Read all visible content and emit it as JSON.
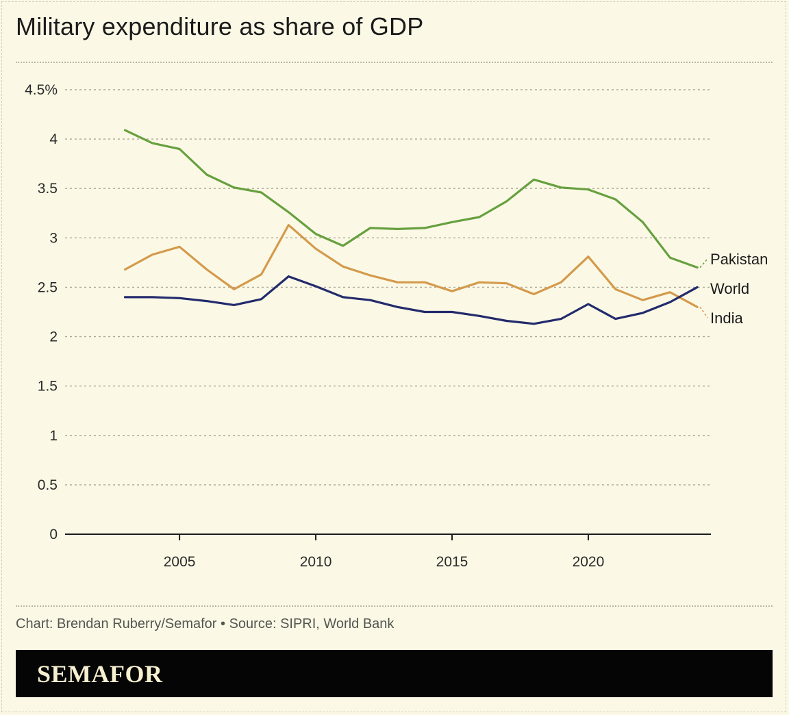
{
  "title": "Military expenditure as share of GDP",
  "credit": "Chart: Brendan Ruberry/Semafor • Source: SIPRI, World Bank",
  "brand": "SEMAFOR",
  "colors": {
    "background": "#fbf9e6",
    "pakistan": "#67a03f",
    "india": "#d49a4c",
    "world": "#232a6c",
    "footer": "#050505",
    "logo": "#f6efd0"
  },
  "chart_data": {
    "type": "line",
    "title": "Military expenditure as share of GDP",
    "xlabel": "",
    "ylabel": "",
    "x": [
      2003,
      2004,
      2005,
      2006,
      2007,
      2008,
      2009,
      2010,
      2011,
      2012,
      2013,
      2014,
      2015,
      2016,
      2017,
      2018,
      2019,
      2020,
      2021,
      2022,
      2023,
      2024
    ],
    "xlim": [
      2000.8,
      2024.5
    ],
    "ylim": [
      0,
      4.5
    ],
    "x_ticks": [
      2005,
      2010,
      2015,
      2020
    ],
    "x_tick_labels": [
      "2005",
      "2010",
      "2015",
      "2020"
    ],
    "y_ticks": [
      0,
      0.5,
      1,
      1.5,
      2,
      2.5,
      3,
      3.5,
      4,
      4.5
    ],
    "y_tick_labels": [
      "0",
      "0.5",
      "1",
      "1.5",
      "2",
      "2.5",
      "3",
      "3.5",
      "4",
      "4.5%"
    ],
    "grid": true,
    "series": [
      {
        "name": "Pakistan",
        "color": "#67a03f",
        "values": [
          4.09,
          3.96,
          3.9,
          3.64,
          3.51,
          3.46,
          3.26,
          3.04,
          2.92,
          3.1,
          3.09,
          3.1,
          3.16,
          3.21,
          3.37,
          3.59,
          3.51,
          3.49,
          3.39,
          3.16,
          2.8,
          2.7
        ]
      },
      {
        "name": "India",
        "color": "#d49a4c",
        "values": [
          2.68,
          2.83,
          2.91,
          2.68,
          2.48,
          2.63,
          3.13,
          2.89,
          2.71,
          2.62,
          2.55,
          2.55,
          2.46,
          2.55,
          2.54,
          2.43,
          2.55,
          2.81,
          2.48,
          2.37,
          2.45,
          2.3
        ]
      },
      {
        "name": "World",
        "color": "#232a6c",
        "values": [
          2.4,
          2.4,
          2.39,
          2.36,
          2.32,
          2.38,
          2.61,
          2.51,
          2.4,
          2.37,
          2.3,
          2.25,
          2.25,
          2.21,
          2.16,
          2.13,
          2.18,
          2.33,
          2.18,
          2.24,
          2.35,
          2.5
        ]
      }
    ],
    "series_labels": [
      "Pakistan",
      "World",
      "India"
    ]
  }
}
